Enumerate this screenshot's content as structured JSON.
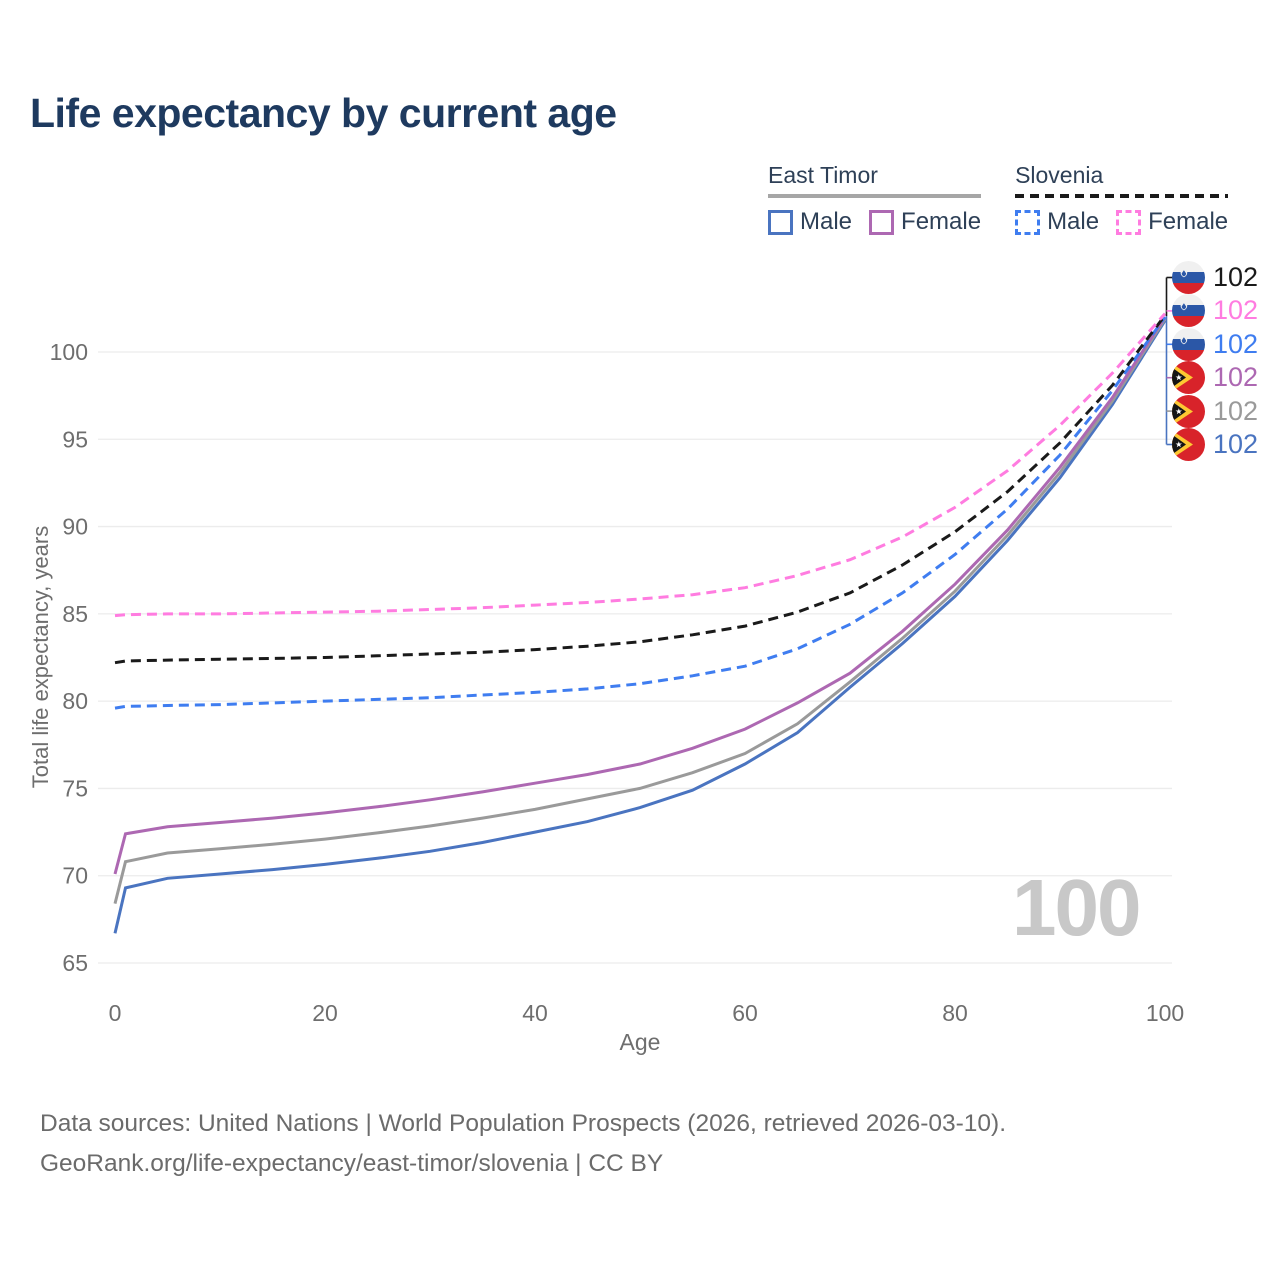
{
  "title": "Life expectancy by current age",
  "watermark_age": "100",
  "legend": {
    "groups": [
      {
        "name": "East Timor",
        "line_style": "solid",
        "underline_color": "#a6a6a6",
        "items": [
          {
            "label": "Male",
            "color": "#4a74c0"
          },
          {
            "label": "Female",
            "color": "#ad68b2"
          }
        ]
      },
      {
        "name": "Slovenia",
        "line_style": "dashed",
        "underline_color": "#1a1a1a",
        "items": [
          {
            "label": "Male",
            "color": "#3f7df0"
          },
          {
            "label": "Female",
            "color": "#ff7ce0"
          }
        ]
      }
    ]
  },
  "chart_data": {
    "type": "line",
    "title": "Life expectancy by current age",
    "xlabel": "Age",
    "ylabel": "Total life expectancy, years",
    "xlim": [
      0,
      100
    ],
    "ylim": [
      65,
      103
    ],
    "xticks": [
      0,
      20,
      40,
      60,
      80,
      100
    ],
    "yticks": [
      65,
      70,
      75,
      80,
      85,
      90,
      95,
      100
    ],
    "grid": "horizontal gridlines",
    "legend_position": "top-right",
    "ages": [
      0,
      1,
      5,
      10,
      15,
      20,
      25,
      30,
      35,
      40,
      45,
      50,
      55,
      60,
      65,
      70,
      75,
      80,
      85,
      90,
      95,
      100
    ],
    "series": [
      {
        "name": "East Timor Male",
        "country": "East Timor",
        "sex": "Male",
        "style": "solid",
        "color": "#4a74c0",
        "values": [
          66.7,
          69.3,
          69.85,
          70.1,
          70.35,
          70.65,
          71.0,
          71.4,
          71.9,
          72.5,
          73.1,
          73.9,
          74.9,
          76.4,
          78.2,
          80.8,
          83.3,
          86.0,
          89.2,
          92.8,
          97.0,
          101.8
        ]
      },
      {
        "name": "East Timor Both sexes",
        "country": "East Timor",
        "sex": "Both",
        "style": "solid",
        "color": "#9a9a9a",
        "values": [
          68.4,
          70.8,
          71.3,
          71.55,
          71.8,
          72.1,
          72.45,
          72.85,
          73.3,
          73.8,
          74.4,
          75.0,
          75.9,
          77.0,
          78.7,
          81.1,
          83.6,
          86.3,
          89.5,
          93.1,
          97.2,
          101.9
        ]
      },
      {
        "name": "East Timor Female",
        "country": "East Timor",
        "sex": "Female",
        "style": "solid",
        "color": "#ad68b2",
        "values": [
          70.1,
          72.4,
          72.8,
          73.05,
          73.3,
          73.6,
          73.95,
          74.35,
          74.8,
          75.3,
          75.8,
          76.4,
          77.3,
          78.4,
          79.9,
          81.6,
          84.0,
          86.7,
          89.8,
          93.4,
          97.4,
          102.0
        ]
      },
      {
        "name": "Slovenia Male",
        "country": "Slovenia",
        "sex": "Male",
        "style": "dashed",
        "color": "#3f7df0",
        "values": [
          79.6,
          79.7,
          79.75,
          79.8,
          79.9,
          80.0,
          80.1,
          80.2,
          80.35,
          80.5,
          80.7,
          81.0,
          81.45,
          82.0,
          83.0,
          84.4,
          86.2,
          88.4,
          91.0,
          94.1,
          97.8,
          102.0
        ]
      },
      {
        "name": "Slovenia Both sexes",
        "country": "Slovenia",
        "sex": "Both",
        "style": "dashed",
        "color": "#1a1a1a",
        "values": [
          82.2,
          82.3,
          82.35,
          82.4,
          82.45,
          82.5,
          82.6,
          82.7,
          82.8,
          82.95,
          83.15,
          83.4,
          83.8,
          84.3,
          85.1,
          86.2,
          87.8,
          89.7,
          92.0,
          94.8,
          98.1,
          102.1
        ]
      },
      {
        "name": "Slovenia Female",
        "country": "Slovenia",
        "sex": "Female",
        "style": "dashed",
        "color": "#ff7ce0",
        "values": [
          84.9,
          84.95,
          85.0,
          85.0,
          85.05,
          85.1,
          85.15,
          85.25,
          85.35,
          85.5,
          85.65,
          85.85,
          86.1,
          86.5,
          87.2,
          88.1,
          89.4,
          91.1,
          93.2,
          95.8,
          98.8,
          102.2
        ]
      }
    ]
  },
  "end_labels": [
    {
      "flag": "slovenia",
      "value": "102",
      "color": "#1a1a1a"
    },
    {
      "flag": "slovenia",
      "value": "102",
      "color": "#ff7ce0"
    },
    {
      "flag": "slovenia",
      "value": "102",
      "color": "#3f7df0"
    },
    {
      "flag": "east-timor",
      "value": "102",
      "color": "#ad68b2"
    },
    {
      "flag": "east-timor",
      "value": "102",
      "color": "#9a9a9a"
    },
    {
      "flag": "east-timor",
      "value": "102",
      "color": "#4a74c0"
    }
  ],
  "footer": {
    "line1": "Data sources: United Nations | World Population Prospects (2026, retrieved 2026-03-10).",
    "line2": "GeoRank.org/life-expectancy/east-timor/slovenia | CC BY"
  }
}
